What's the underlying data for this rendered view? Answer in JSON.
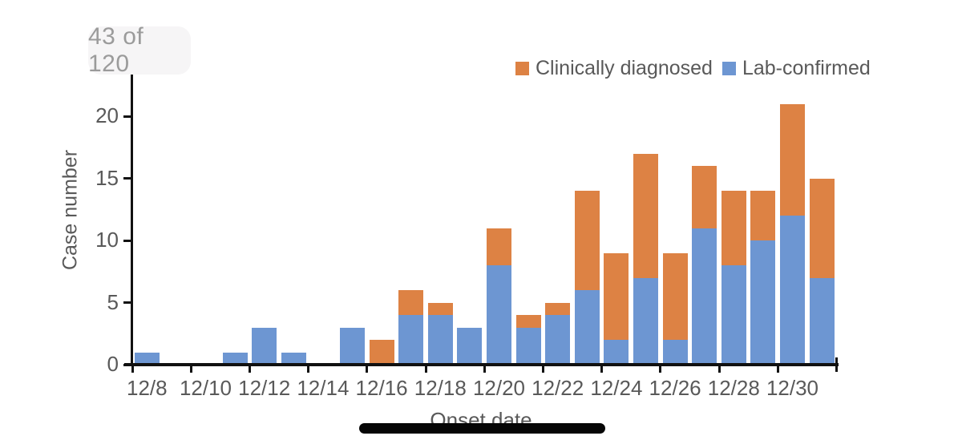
{
  "viewer": {
    "counter": "43 of 120"
  },
  "colors": {
    "clinical_orange": "#dd8244",
    "lab_blue": "#6d96d2",
    "axis_black": "#111111",
    "label_gray": "#595959",
    "counter_gray": "#9b9b9b",
    "counter_pill_bg": "#f6f5f6",
    "home_indicator_black": "#060606"
  },
  "chart_data": {
    "type": "bar",
    "stacked": true,
    "xlabel": "Onset date",
    "ylabel": "Case number",
    "ylim": [
      0,
      20
    ],
    "yticks": [
      0,
      5,
      10,
      15,
      20
    ],
    "grid": false,
    "legend_position": "top-right",
    "legend": [
      "Clinically diagnosed",
      "Lab-confirmed"
    ],
    "categories": [
      "12/8",
      "12/9",
      "12/10",
      "12/11",
      "12/12",
      "12/13",
      "12/14",
      "12/15",
      "12/16",
      "12/17",
      "12/18",
      "12/19",
      "12/20",
      "12/21",
      "12/22",
      "12/23",
      "12/24",
      "12/25",
      "12/26",
      "12/27",
      "12/28",
      "12/29",
      "12/30",
      "12/31"
    ],
    "xtick_label_every": 2,
    "series": [
      {
        "key": "lab",
        "name": "Lab-confirmed",
        "color": "#6d96d2",
        "values": [
          1,
          0,
          0,
          1,
          3,
          1,
          0,
          3,
          0,
          4,
          4,
          3,
          8,
          3,
          4,
          6,
          2,
          7,
          2,
          11,
          8,
          10,
          12,
          7
        ]
      },
      {
        "key": "clinical",
        "name": "Clinically diagnosed",
        "color": "#dd8244",
        "values": [
          0,
          0,
          0,
          0,
          0,
          0,
          0,
          0,
          2,
          2,
          1,
          0,
          3,
          1,
          1,
          8,
          7,
          10,
          7,
          5,
          6,
          4,
          9,
          8
        ]
      }
    ]
  }
}
